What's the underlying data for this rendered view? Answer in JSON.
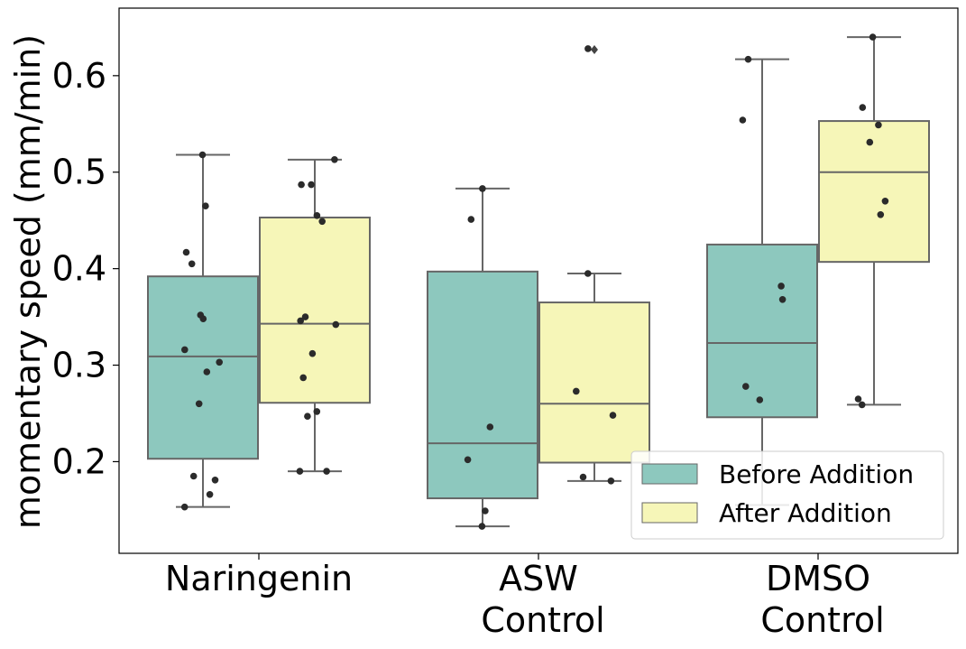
{
  "chart_data": {
    "type": "box",
    "title": "",
    "xlabel": "",
    "ylabel": "momentary speed (mm/min)",
    "ylim": [
      0.105,
      0.67
    ],
    "yticks": [
      "0.2",
      "0.3",
      "0.4",
      "0.5",
      "0.6"
    ],
    "ytick_values": [
      0.2,
      0.3,
      0.4,
      0.5,
      0.6
    ],
    "categories": [
      [
        "Naringenin"
      ],
      [
        "ASW",
        "Control"
      ],
      [
        "DMSO",
        "Control"
      ]
    ],
    "legend": {
      "placement": "lower-right",
      "entries": [
        "Before Addition",
        "After Addition"
      ]
    },
    "series": [
      {
        "name": "Before Addition",
        "color": "#8dc8be",
        "boxes": [
          {
            "q1": 0.203,
            "median": 0.309,
            "q3": 0.392,
            "whisker_low": 0.153,
            "whisker_high": 0.518,
            "fliers": []
          },
          {
            "q1": 0.162,
            "median": 0.219,
            "q3": 0.397,
            "whisker_low": 0.133,
            "whisker_high": 0.483,
            "fliers": []
          },
          {
            "q1": 0.246,
            "median": 0.323,
            "q3": 0.425,
            "whisker_low": 0.155,
            "whisker_high": 0.617,
            "fliers": []
          }
        ],
        "points": [
          [
            0.518,
            0.465,
            0.417,
            0.405,
            0.352,
            0.348,
            0.316,
            0.303,
            0.293,
            0.26,
            0.185,
            0.181,
            0.166,
            0.153
          ],
          [
            0.483,
            0.451,
            0.236,
            0.202,
            0.149,
            0.133
          ],
          [
            0.617,
            0.554,
            0.382,
            0.368,
            0.278,
            0.264
          ]
        ]
      },
      {
        "name": "After Addition",
        "color": "#f6f6b8",
        "boxes": [
          {
            "q1": 0.261,
            "median": 0.343,
            "q3": 0.453,
            "whisker_low": 0.19,
            "whisker_high": 0.513,
            "fliers": []
          },
          {
            "q1": 0.199,
            "median": 0.26,
            "q3": 0.365,
            "whisker_low": 0.18,
            "whisker_high": 0.395,
            "fliers": [
              0.627
            ]
          },
          {
            "q1": 0.407,
            "median": 0.5,
            "q3": 0.553,
            "whisker_low": 0.259,
            "whisker_high": 0.64,
            "fliers": []
          }
        ],
        "points": [
          [
            0.513,
            0.487,
            0.487,
            0.455,
            0.449,
            0.35,
            0.346,
            0.342,
            0.312,
            0.287,
            0.252,
            0.247,
            0.19,
            0.19
          ],
          [
            0.628,
            0.395,
            0.273,
            0.248,
            0.184,
            0.18
          ],
          [
            0.64,
            0.567,
            0.549,
            0.531,
            0.47,
            0.456,
            0.265,
            0.259
          ]
        ]
      }
    ]
  }
}
